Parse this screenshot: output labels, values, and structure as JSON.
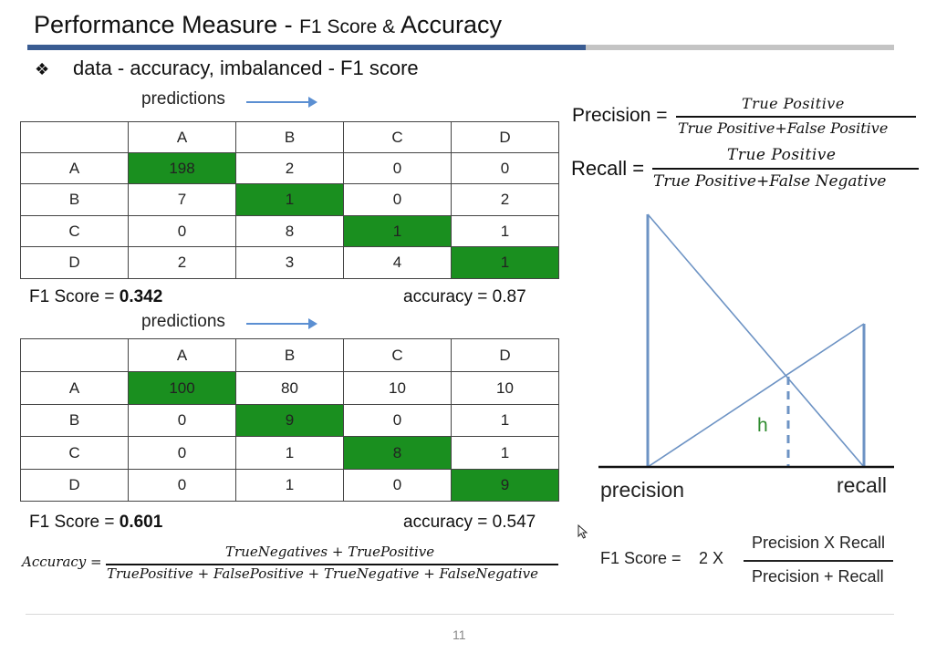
{
  "slide": {
    "title_main": "Performance Measure - ",
    "title_small1": "F1 Score",
    "title_amp": " & ",
    "title_end": "Accuracy",
    "bullet_symbol": "❖",
    "bullet_text": "data - accuracy, imbalanced - F1 score",
    "page_number": "11"
  },
  "table1": {
    "predictions_label": "predictions",
    "headers": [
      "",
      "A",
      "B",
      "C",
      "D"
    ],
    "rows": [
      [
        "A",
        "198",
        "2",
        "0",
        "0"
      ],
      [
        "B",
        "7",
        "1",
        "0",
        "2"
      ],
      [
        "C",
        "0",
        "8",
        "1",
        "1"
      ],
      [
        "D",
        "2",
        "3",
        "4",
        "1"
      ]
    ],
    "f1_label": "F1 Score = ",
    "f1_value": "0.342",
    "accuracy": "accuracy = 0.87"
  },
  "table2": {
    "predictions_label": "predictions",
    "headers": [
      "",
      "A",
      "B",
      "C",
      "D"
    ],
    "rows": [
      [
        "A",
        "100",
        "80",
        "10",
        "10"
      ],
      [
        "B",
        "0",
        "9",
        "0",
        "1"
      ],
      [
        "C",
        "0",
        "1",
        "8",
        "1"
      ],
      [
        "D",
        "0",
        "1",
        "0",
        "9"
      ]
    ],
    "f1_label": "F1 Score = ",
    "f1_value": "0.601",
    "accuracy": "accuracy = 0.547"
  },
  "accuracy_formula": {
    "lhs": "Accuracy =",
    "numerator": "TrueNegatives + TruePositive",
    "denominator": "TruePositive + FalsePositive + TrueNegative + FalseNegative"
  },
  "precision_formula": {
    "lhs": "Precision =",
    "numerator": "True Positive",
    "denominator": "True Positive+False Positive"
  },
  "recall_formula": {
    "lhs": "Recall =",
    "numerator": "True Positive",
    "denominator": "True Positive+False Negative"
  },
  "diagram": {
    "precision_label": "precision",
    "recall_label": "recall",
    "h_label": "h"
  },
  "f1_formula": {
    "lhs": "F1 Score =",
    "factor": "2 X",
    "numerator": "Precision X Recall",
    "denominator": "Precision + Recall"
  },
  "colors": {
    "diagonal_cell": "#1a8f1f",
    "title_bar_blue": "#3a5c92",
    "diagram_line": "#6d93c4",
    "h_color": "#2e8b2e"
  }
}
